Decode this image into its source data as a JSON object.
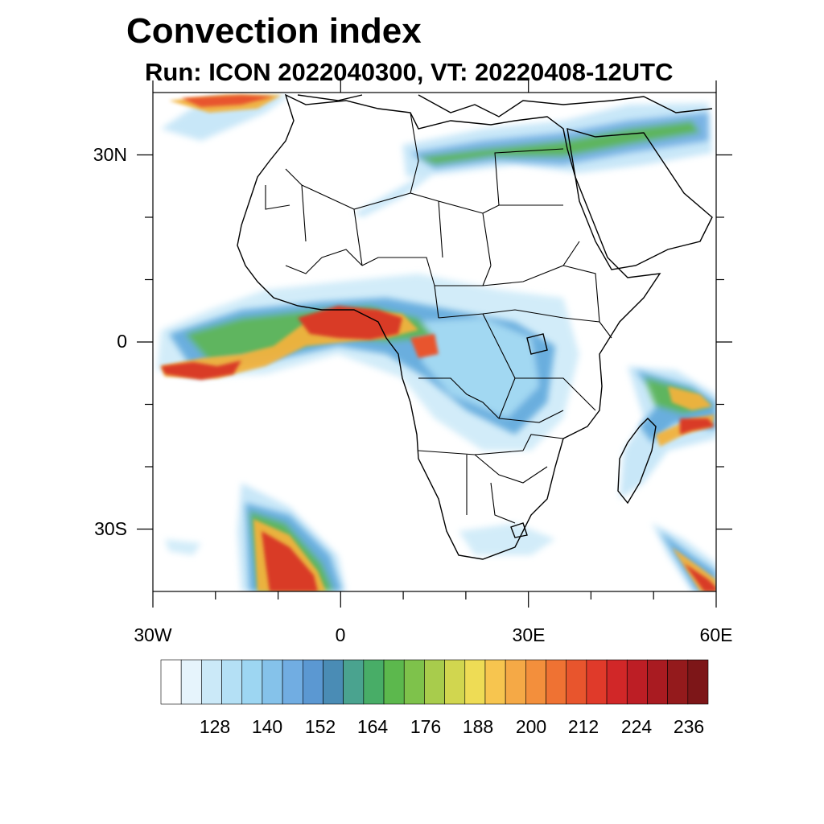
{
  "title": "Convection index",
  "subtitle": "Run: ICON 2022040300,  VT: 20220408-12UTC",
  "map": {
    "lat_labels": [
      "30N",
      "0",
      "30S"
    ],
    "lon_labels": [
      "30W",
      "0",
      "30E",
      "60E"
    ],
    "lat_values": [
      30,
      0,
      -30
    ],
    "lon_values": [
      -30,
      0,
      30,
      60
    ],
    "lon_range": [
      -30,
      60
    ],
    "lat_range": [
      -40,
      40
    ]
  },
  "colorbar": {
    "labels": [
      "128",
      "140",
      "152",
      "164",
      "176",
      "188",
      "200",
      "212",
      "224",
      "236"
    ],
    "colors": [
      "#ffffff",
      "#e6f4fc",
      "#cbe9f8",
      "#b4e0f5",
      "#9dd6f2",
      "#85c2ea",
      "#71ade2",
      "#5b98d2",
      "#4a8cb5",
      "#4aa38f",
      "#48ad67",
      "#5cb84d",
      "#7ec24b",
      "#a8cc4c",
      "#d1d64f",
      "#eedc55",
      "#f7c54f",
      "#f5a946",
      "#f38f3c",
      "#ef7233",
      "#e8552d",
      "#e03a2a",
      "#d12728",
      "#bd1e25",
      "#a91b21",
      "#941a1c",
      "#7d1618"
    ]
  },
  "field_colors": {
    "land_outline": "#000000",
    "high": "#d93a26",
    "mid": "#f2b23e",
    "low": "#5fa8dc",
    "weak": "#bfe3f7",
    "green": "#52b04f"
  }
}
